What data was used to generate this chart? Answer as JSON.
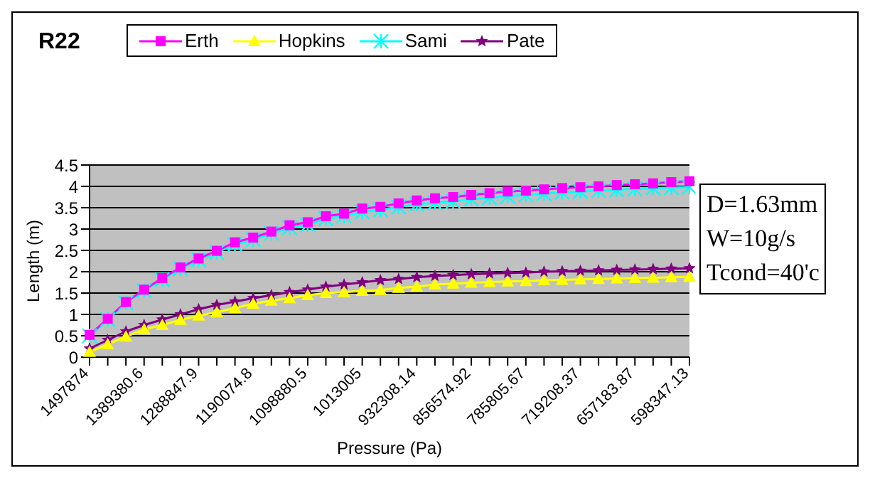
{
  "chart_data": {
    "type": "line",
    "title": "R22",
    "xlabel": "Pressure (Pa)",
    "ylabel": "Length (m)",
    "categories": [
      "1497874",
      null,
      null,
      "1389380.6",
      null,
      null,
      "1288847.9",
      null,
      null,
      "1190074.8",
      null,
      null,
      "1098880.5",
      null,
      null,
      "1013005",
      null,
      null,
      "932308.14",
      null,
      null,
      "856574.92",
      null,
      null,
      "785805.67",
      null,
      null,
      "719208.37",
      null,
      null,
      "657183.87",
      null,
      null,
      "598347.13"
    ],
    "series": [
      {
        "name": "Erth",
        "color": "#ff00ff",
        "marker": "square",
        "values": [
          0.52,
          0.9,
          1.29,
          1.58,
          1.85,
          2.1,
          2.31,
          2.49,
          2.69,
          2.8,
          2.94,
          3.09,
          3.16,
          3.3,
          3.36,
          3.48,
          3.52,
          3.6,
          3.67,
          3.72,
          3.75,
          3.8,
          3.84,
          3.88,
          3.9,
          3.93,
          3.96,
          3.98,
          4.0,
          4.03,
          4.05,
          4.07,
          4.1,
          4.12
        ]
      },
      {
        "name": "Hopkins",
        "color": "#ffff00",
        "marker": "triangle",
        "values": [
          0.12,
          0.3,
          0.48,
          0.65,
          0.75,
          0.87,
          0.97,
          1.05,
          1.15,
          1.25,
          1.32,
          1.38,
          1.45,
          1.5,
          1.52,
          1.55,
          1.57,
          1.62,
          1.65,
          1.7,
          1.72,
          1.74,
          1.76,
          1.77,
          1.78,
          1.8,
          1.81,
          1.82,
          1.83,
          1.84,
          1.85,
          1.86,
          1.87,
          1.88
        ]
      },
      {
        "name": "Sami",
        "color": "#00ffff",
        "marker": "cross",
        "values": [
          0.5,
          0.88,
          1.27,
          1.56,
          1.82,
          2.07,
          2.28,
          2.45,
          2.64,
          2.75,
          2.9,
          3.03,
          3.1,
          3.24,
          3.3,
          3.4,
          3.45,
          3.52,
          3.58,
          3.62,
          3.65,
          3.7,
          3.73,
          3.77,
          3.8,
          3.83,
          3.86,
          3.88,
          3.9,
          3.92,
          3.94,
          3.96,
          3.97,
          3.98
        ]
      },
      {
        "name": "Pate",
        "color": "#800080",
        "marker": "star",
        "values": [
          0.2,
          0.4,
          0.6,
          0.75,
          0.88,
          1.0,
          1.12,
          1.22,
          1.3,
          1.38,
          1.45,
          1.52,
          1.58,
          1.65,
          1.7,
          1.75,
          1.8,
          1.83,
          1.87,
          1.9,
          1.92,
          1.94,
          1.96,
          1.97,
          1.98,
          2.0,
          2.01,
          2.02,
          2.03,
          2.04,
          2.05,
          2.06,
          2.07,
          2.08
        ]
      }
    ],
    "ylim": [
      0,
      4.5
    ],
    "yticks": [
      0,
      0.5,
      1,
      1.5,
      2,
      2.5,
      3,
      3.5,
      4,
      4.5
    ],
    "grid": "y",
    "legend": "top",
    "annotations": [
      "D=1.63mm",
      "W=10g/s",
      "Tcond=40'c"
    ]
  }
}
